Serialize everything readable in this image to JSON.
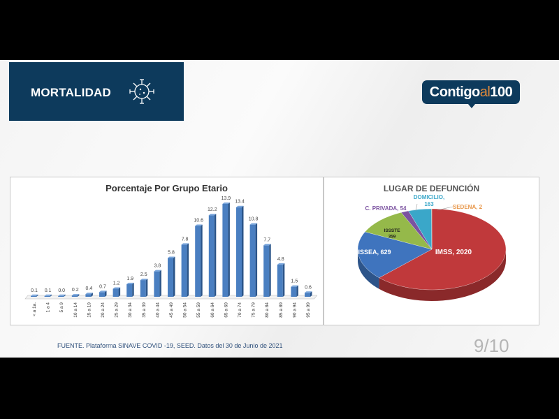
{
  "header": {
    "title": "MORTALIDAD",
    "icon": "virus-icon"
  },
  "logo": {
    "text_main": "Contigo",
    "text_al": "al",
    "text_num": "100"
  },
  "footer": {
    "source": "FUENTE. Plataforma SINAVE COVID -19, SEED. Datos del 30 de Junio de 2021",
    "page": "9/10"
  },
  "colors": {
    "navy": "#0d3a5c",
    "bar": "#4a7fc1"
  },
  "chart_data": [
    {
      "type": "bar",
      "title": "Porcentaje Por Grupo Etario",
      "categories": [
        "< a 1a.",
        "1 a 4",
        "5 a 9",
        "10 a 14",
        "15 a 19",
        "20 a 24",
        "25 a 29",
        "30 a 34",
        "35 a 39",
        "40 a 44",
        "45 a 49",
        "50 a 54",
        "55 a 59",
        "60 a 64",
        "65 a 69",
        "70 a 74",
        "75 a 79",
        "80 a 84",
        "85 a 89",
        "90 a 94",
        "95 a 99"
      ],
      "values": [
        0.1,
        0.1,
        0.0,
        0.2,
        0.4,
        0.7,
        1.2,
        1.9,
        2.5,
        3.8,
        5.8,
        7.8,
        10.6,
        12.2,
        13.9,
        13.4,
        10.8,
        7.7,
        4.8,
        1.5,
        0.6
      ],
      "labels": [
        "0.1",
        "0.1",
        "0.0",
        "0.2",
        "0.4",
        "0.7",
        "1.2",
        "1.9",
        "2.5",
        "3.8",
        "5.8",
        "7.8",
        "10.6",
        "12.2",
        "13.9",
        "13.4",
        "10.8",
        "7.7",
        "4.8",
        "1.5",
        "0.6"
      ],
      "ylim": [
        0,
        14
      ],
      "grid": false,
      "color": "#4a7fc1"
    },
    {
      "type": "pie",
      "title": "LUGAR DE DEFUNCIÓN",
      "slices": [
        {
          "name": "IMSS",
          "value": 2020,
          "label": "IMSS, 2020",
          "color": "#c0393b"
        },
        {
          "name": "ISSEA",
          "value": 629,
          "label": "ISSEA, 629",
          "color": "#3f74be"
        },
        {
          "name": "ISSSTE",
          "value": 359,
          "label": "ISSSTE 359",
          "color": "#95b94a"
        },
        {
          "name": "C. PRIVADA",
          "value": 54,
          "label": "C. PRIVADA, 54",
          "color": "#7b52a0"
        },
        {
          "name": "DOMICILIO",
          "value": 163,
          "label": "DOMICILIO, 163",
          "color": "#3aa7c9"
        },
        {
          "name": "SEDENA",
          "value": 2,
          "label": "SEDENA, 2",
          "color": "#e8974a"
        }
      ]
    }
  ]
}
